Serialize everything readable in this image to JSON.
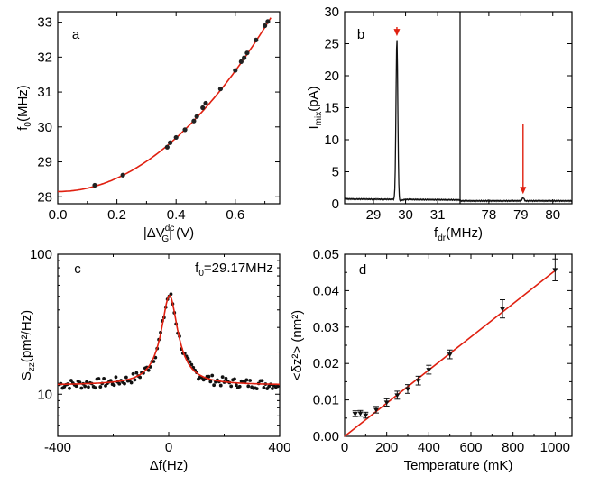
{
  "chart_data": [
    {
      "panel_label": "a",
      "type": "scatter",
      "xlabel_prefix": "|",
      "xlabel_delta": "ΔV",
      "xlabel_sup": "dc",
      "xlabel_sub": "G",
      "xlabel_suffix": "| (V)",
      "ylabel": "f",
      "ylabel_sub": "0",
      "ylabel_suffix": "(MHz)",
      "xlim": [
        0.0,
        0.75
      ],
      "ylim": [
        27.8,
        33.3
      ],
      "xticks": [
        0.0,
        0.2,
        0.4,
        0.6
      ],
      "xtick_labels": [
        "0.0",
        "0.2",
        "0.4",
        "0.6"
      ],
      "yticks": [
        28,
        29,
        30,
        31,
        32,
        33
      ],
      "ytick_labels": [
        "28",
        "29",
        "30",
        "31",
        "32",
        "33"
      ],
      "points": {
        "x": [
          0.125,
          0.22,
          0.37,
          0.38,
          0.4,
          0.43,
          0.46,
          0.47,
          0.49,
          0.5,
          0.55,
          0.6,
          0.62,
          0.63,
          0.64,
          0.67,
          0.7,
          0.71
        ],
        "y": [
          28.33,
          28.62,
          29.42,
          29.55,
          29.7,
          29.92,
          30.17,
          30.3,
          30.55,
          30.68,
          31.09,
          31.62,
          31.87,
          31.98,
          32.12,
          32.49,
          32.9,
          33.02
        ]
      },
      "fit": {
        "color": "#e02010",
        "model": "quadratic",
        "y0": 28.15,
        "coef": 9.6
      }
    },
    {
      "panel_label": "b",
      "type": "line",
      "ylabel": "I",
      "ylabel_sub": "mix",
      "ylabel_suffix": "(pA)",
      "xlabel": "f",
      "xlabel_sub": "dr",
      "xlabel_suffix": "(MHz)",
      "ylim": [
        0,
        30
      ],
      "yticks": [
        0,
        5,
        10,
        15,
        20,
        25,
        30
      ],
      "ytick_labels": [
        "0",
        "5",
        "10",
        "15",
        "20",
        "25",
        "30"
      ],
      "segments": [
        {
          "xlim": [
            28.1,
            31.7
          ],
          "xticks": [
            29,
            30,
            31
          ],
          "xtick_labels": [
            "29",
            "30",
            "31"
          ],
          "baseline": 0.75,
          "peak_x": 29.73,
          "peak_y": 25.9,
          "arrow_x": 29.73
        },
        {
          "xlim": [
            77.1,
            80.6
          ],
          "xticks": [
            78,
            79,
            80
          ],
          "xtick_labels": [
            "78",
            "79",
            "80"
          ],
          "baseline": 0.45,
          "peak_x": 79.07,
          "peak_y": 0.95,
          "arrow_x": 79.07
        }
      ],
      "arrow_color": "#e02010"
    },
    {
      "panel_label": "c",
      "type": "scatter",
      "annotation": "f",
      "annotation_sub": "0",
      "annotation_suffix": "=29.17MHz",
      "xlabel": "Δf(Hz)",
      "ylabel": "S",
      "ylabel_sub": "zz",
      "ylabel_suffix": "(pm²/Hz)",
      "yscale": "log",
      "xlim": [
        -400,
        400
      ],
      "ylim": [
        5,
        100
      ],
      "xticks": [
        -400,
        0,
        400
      ],
      "xtick_labels": [
        "-400",
        "0",
        "400"
      ],
      "yticks": [
        10,
        100
      ],
      "ytick_labels": [
        "10",
        "100"
      ],
      "fit": {
        "color": "#e02010",
        "model": "lorentzian",
        "center": 3,
        "gamma": 26,
        "amplitude": 39,
        "background": 11.6
      }
    },
    {
      "panel_label": "d",
      "type": "scatter",
      "xlabel": "Temperature (mK)",
      "ylabel": "<δz²> (nm²)",
      "xlim": [
        0,
        1080
      ],
      "ylim": [
        0,
        0.05
      ],
      "xticks": [
        0,
        200,
        400,
        600,
        800,
        1000
      ],
      "xtick_labels": [
        "0",
        "200",
        "400",
        "600",
        "800",
        "1000"
      ],
      "yticks": [
        0.0,
        0.01,
        0.02,
        0.03,
        0.04,
        0.05
      ],
      "ytick_labels": [
        "0.00",
        "0.01",
        "0.02",
        "0.03",
        "0.04",
        "0.05"
      ],
      "points": {
        "x": [
          50,
          75,
          100,
          150,
          200,
          250,
          300,
          350,
          400,
          500,
          750,
          1000
        ],
        "y": [
          0.0062,
          0.0063,
          0.0058,
          0.0073,
          0.0093,
          0.0113,
          0.013,
          0.0153,
          0.0183,
          0.0225,
          0.035,
          0.0457
        ],
        "err": [
          0.0008,
          0.0008,
          0.0008,
          0.0009,
          0.001,
          0.0011,
          0.0012,
          0.0012,
          0.0012,
          0.0012,
          0.0025,
          0.003
        ]
      },
      "fit": {
        "color": "#e02010",
        "slope": 4.55e-05,
        "intercept": 0.0
      }
    }
  ]
}
